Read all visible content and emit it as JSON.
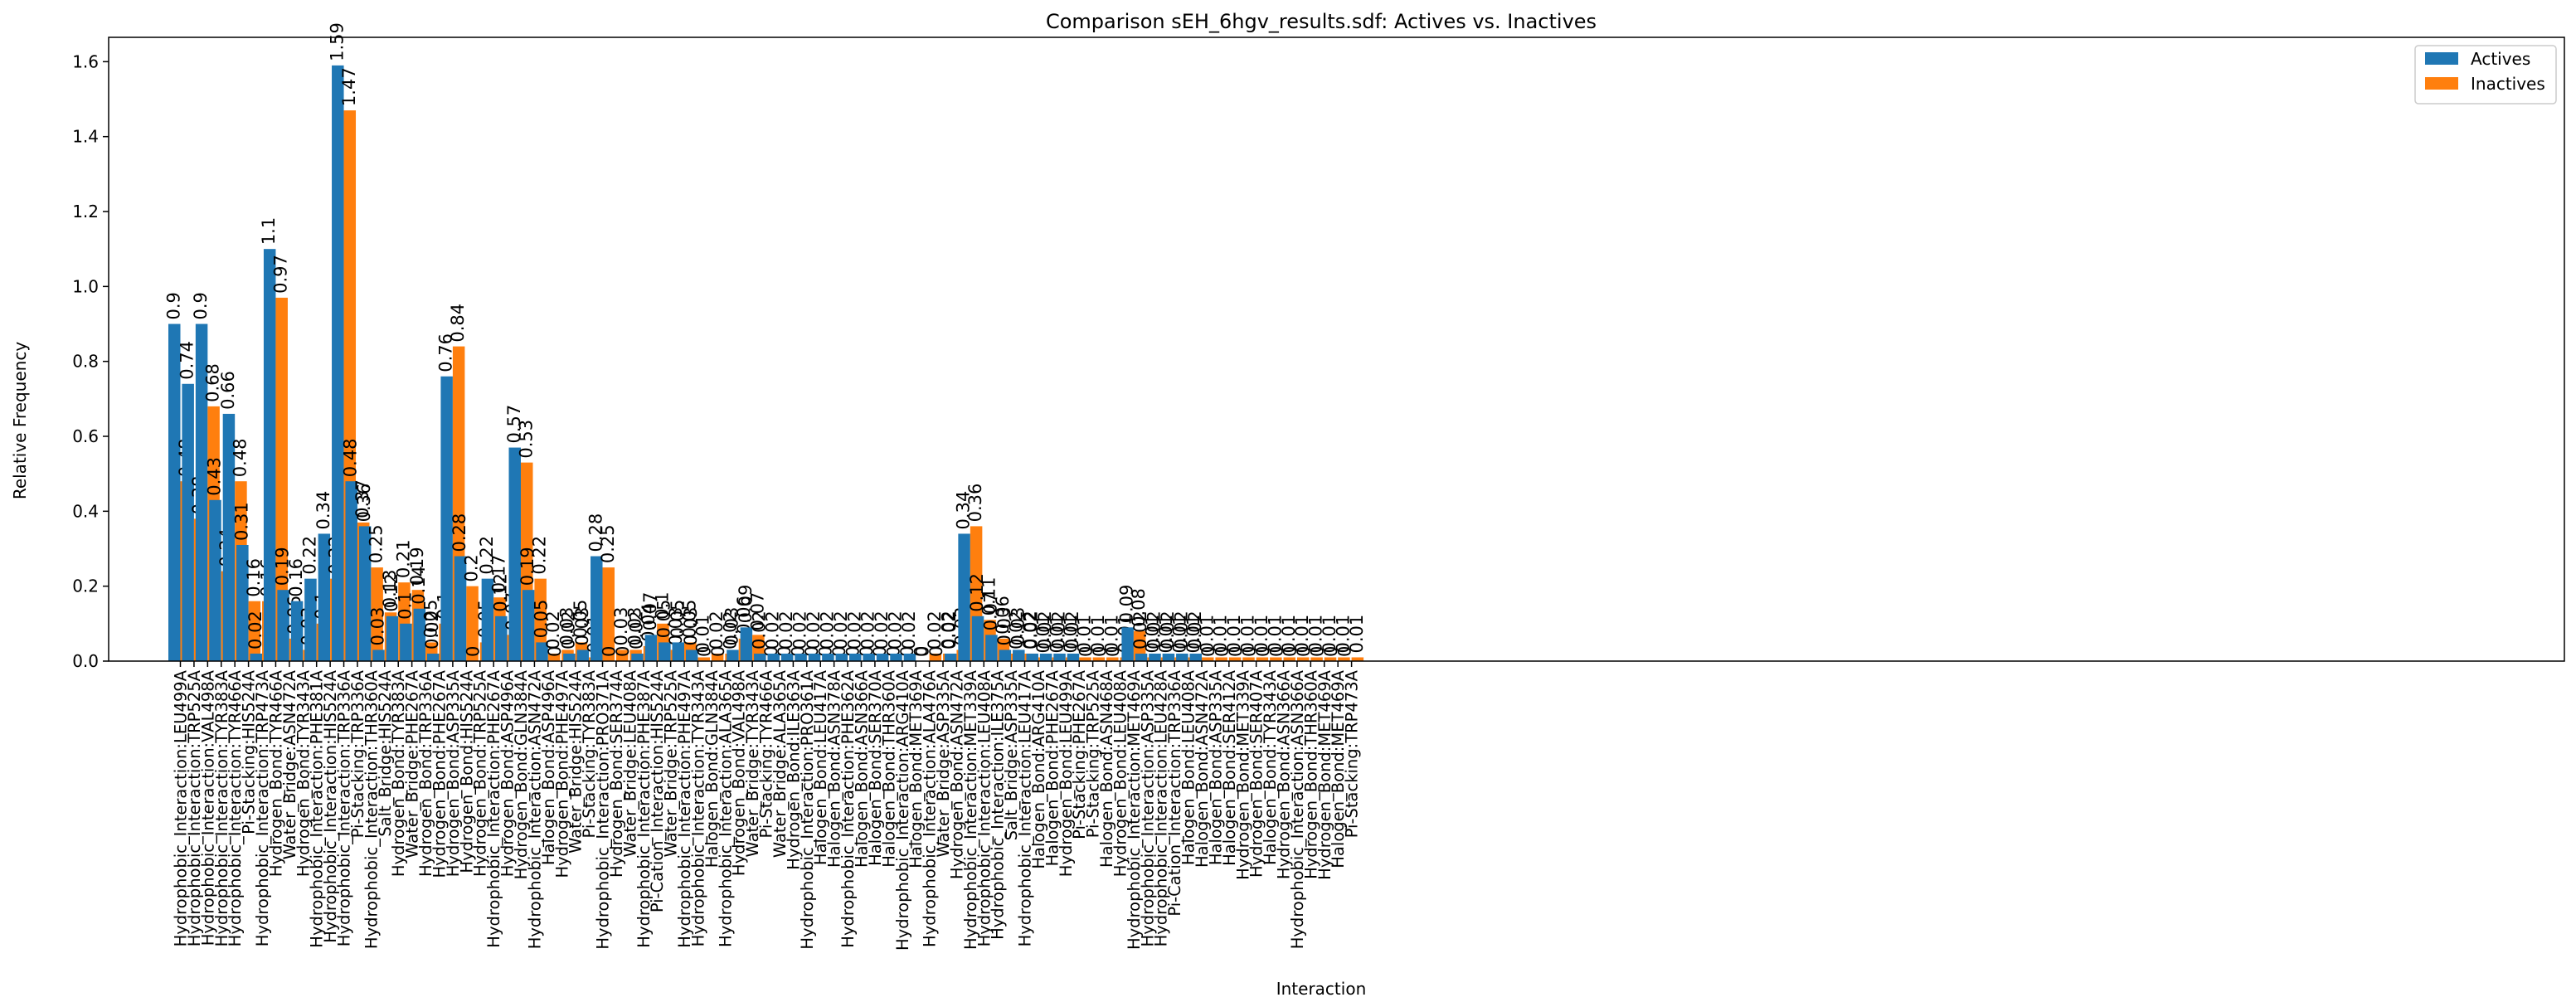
{
  "chart_data": {
    "type": "bar",
    "title": "Comparison sEH_6hgv_results.sdf: Actives vs. Inactives",
    "xlabel": "Interaction",
    "ylabel": "Relative Frequency",
    "ylim": [
      0,
      1.665
    ],
    "yticks": [
      "0.0",
      "0.2",
      "0.4",
      "0.6",
      "0.8",
      "1.0",
      "1.2",
      "1.4",
      "1.6"
    ],
    "grid": false,
    "legend_position": "top-right",
    "colors": {
      "Actives": "#1f77b4",
      "Inactives": "#ff7f0e"
    },
    "categories": [
      "Hydrophobic_Interaction:LEU499A",
      "Hydrophobic_Interaction:TRP525A",
      "Hydrophobic_Interaction:VAL498A",
      "Hydrophobic_Interaction:TYR383A",
      "Hydrophobic_Interaction:TYR466A",
      "Pi-Stacking:HIS524A",
      "Hydrophobic_Interaction:TRP473A",
      "Hydrogen_Bond:TYR466A",
      "Water_Bridge:ASN472A",
      "Hydrogen_Bond:TYR343A",
      "Hydrophobic_Interaction:PHE381A",
      "Hydrophobic_Interaction:HIS524A",
      "Hydrophobic_Interaction:TRP336A",
      "Pi-Stacking:TRP336A",
      "Hydrophobic_Interaction:THR360A",
      "Salt_Bridge:HIS524A",
      "Hydrogen_Bond:TYR383A",
      "Water_Bridge:PHE267A",
      "Hydrogen_Bond:TRP336A",
      "Hydrogen_Bond:PHE267A",
      "Hydrogen_Bond:ASP335A",
      "Hydrogen_Bond:HIS524A",
      "Hydrogen_Bond:TRP525A",
      "Hydrophobic_Interaction:PHE267A",
      "Hydrogen_Bond:ASP496A",
      "Hydrogen_Bond:GLN384A",
      "Hydrophobic_Interaction:ASN472A",
      "Halogen_Bond:ASP496A",
      "Hydrogen_Bond:PHE497A",
      "Water_Bridge:HIS524A",
      "Pi-Stacking:TYR383A",
      "Hydrophobic_Interaction:PRO371A",
      "Hydrogen_Bond:SER374A",
      "Water_Bridge:LEU408A",
      "Hydrophobic_Interaction:PHE387A",
      "Pi-Cation_Interaction:HIS524A",
      "Water_Bridge:TRP525A",
      "Hydrophobic_Interaction:PHE497A",
      "Hydrophobic_Interaction:TYR343A",
      "Halogen_Bond:GLN384A",
      "Hydrophobic_Interaction:ALA365A",
      "Hydrogen_Bond:VAL498A",
      "Water_Bridge:TYR343A",
      "Pi-Stacking:TYR466A",
      "Water_Bridge:ALA365A",
      "Hydrogen_Bond:ILE363A",
      "Hydrophobic_Interaction:PRO361A",
      "Halogen_Bond:LEU417A",
      "Halogen_Bond:ASN378A",
      "Hydrophobic_Interaction:PHE362A",
      "Halogen_Bond:ASN366A",
      "Halogen_Bond:SER370A",
      "Halogen_Bond:THR360A",
      "Hydrophobic_Interaction:ARG410A",
      "Halogen_Bond:MET369A",
      "Hydrophobic_Interaction:ALA476A",
      "Water_Bridge:ASP335A",
      "Hydrogen_Bond:ASN472A",
      "Hydrophobic_Interaction:MET339A",
      "Hydrophobic_Interaction:LEU408A",
      "Hydrophobic_Interaction:ILE375A",
      "Salt_Bridge:ASP335A",
      "Hydrophobic_Interaction:LEU417A",
      "Halogen_Bond:ARG410A",
      "Halogen_Bond:PHE267A",
      "Hydrogen_Bond:LEU499A",
      "Pi-Stacking:PHE267A",
      "Pi-Stacking:TRP525A",
      "Halogen_Bond:ASN468A",
      "Hydrogen_Bond:LEU408A",
      "Hydrophobic_Interaction:MET469A",
      "Hydrophobic_Interaction:ASP335A",
      "Hydrophobic_Interaction:LEU428A",
      "Pi-Cation_Interaction:TRP336A",
      "Halogen_Bond:LEU408A",
      "Halogen_Bond:ASN472A",
      "Halogen_Bond:ASP335A",
      "Halogen_Bond:SER412A",
      "Hydrogen_Bond:MET339A",
      "Hydrogen_Bond:SER407A",
      "Halogen_Bond:TYR343A",
      "Hydrogen_Bond:ASN366A",
      "Hydrophobic_Interaction:ASN366A",
      "Hydrogen_Bond:THR360A",
      "Hydrogen_Bond:MET469A",
      "Halogen_Bond:MET469A",
      "Pi-Stacking:TRP473A"
    ],
    "series": [
      {
        "name": "Actives",
        "values": [
          0.9,
          0.74,
          0.9,
          0.43,
          0.66,
          0.31,
          0.02,
          1.1,
          0.19,
          0.16,
          0.22,
          0.34,
          1.59,
          0.48,
          0.36,
          0.03,
          0.12,
          0.1,
          0.14,
          0.02,
          0.76,
          0.28,
          0,
          0.22,
          0.12,
          0.57,
          0.19,
          0.05,
          0,
          0.02,
          0.03,
          0.28,
          0,
          0,
          0.02,
          0.07,
          0.05,
          0.05,
          0.03,
          0,
          0,
          0.03,
          0.09,
          0.02,
          0.02,
          0.02,
          0.02,
          0.02,
          0.02,
          0.02,
          0.02,
          0.02,
          0.02,
          0.02,
          0.02,
          0,
          0,
          0.02,
          0.34,
          0.12,
          0.07,
          0.03,
          0.03,
          0.02,
          0.02,
          0.02,
          0.02,
          0,
          0,
          0,
          0.09,
          0.02,
          0.02,
          0.02,
          0.02,
          0.02,
          0,
          0,
          0,
          0,
          0,
          0,
          0,
          0,
          0,
          0,
          0
        ],
        "labels": [
          "0.9",
          "0.74",
          "0.9",
          "0.43",
          "0.66",
          "0.31",
          "0.02",
          "1.1",
          "0.19",
          "0.16",
          "0.22",
          "0.34",
          "1.59",
          "0.48",
          "0.36",
          "0.03",
          "0.12",
          "0.1",
          "0.14",
          "0.02",
          "0.76",
          "0.28",
          "0",
          "0.22",
          "0.12",
          "0.57",
          "0.19",
          "0.05",
          "0",
          "0.02",
          "0.03",
          "0.28",
          "0",
          "0",
          "0.02",
          "0.07",
          "0.05",
          "0.05",
          "0.03",
          "0",
          "0",
          "0.03",
          "0.09",
          "0.02",
          "0.02",
          "0.02",
          "0.02",
          "0.02",
          "0.02",
          "0.02",
          "0.02",
          "0.02",
          "0.02",
          "0.02",
          "0.02",
          "0",
          "0",
          "0.02",
          "0.34",
          "0.12",
          "0.07",
          "0.03",
          "0.03",
          "0.02",
          "0.02",
          "0.02",
          "0.02",
          "0",
          "0",
          "0",
          "0.09",
          "0.02",
          "0.02",
          "0.02",
          "0.02",
          "0.02",
          "0",
          "0",
          "0",
          "0",
          "0",
          "0",
          "0",
          "0",
          "0",
          "0",
          "0"
        ]
      },
      {
        "name": "Inactives",
        "values": [
          0.48,
          0.38,
          0.68,
          0.24,
          0.48,
          0.16,
          0.16,
          0.97,
          0.06,
          0.03,
          0.1,
          0.22,
          1.47,
          0.37,
          0.25,
          0.13,
          0.21,
          0.19,
          0.05,
          0.1,
          0.84,
          0.2,
          0.05,
          0.17,
          0.07,
          0.53,
          0.22,
          0.02,
          0.03,
          0.05,
          0.01,
          0.25,
          0.03,
          0.03,
          0.04,
          0.1,
          0.03,
          0.05,
          0.01,
          0.02,
          0.02,
          0.06,
          0.07,
          0,
          0,
          0,
          0,
          0,
          0,
          0,
          0,
          0,
          0,
          0,
          0,
          0.02,
          0.02,
          0.03,
          0.36,
          0.11,
          0.06,
          0.02,
          0.02,
          0.01,
          0.01,
          0.01,
          0.01,
          0.01,
          0.01,
          0.01,
          0.08,
          0.01,
          0.01,
          0.01,
          0.01,
          0.01,
          0.01,
          0.01,
          0.01,
          0.01,
          0.01,
          0.01,
          0.01,
          0.01,
          0.01,
          0.01,
          0.01
        ],
        "labels": [
          "0.48",
          "0.38",
          "0.68",
          "0.24",
          "0.48",
          "0.16",
          "0.16",
          "0.97",
          "0.06",
          "0.03",
          "0.1",
          "0.22",
          "1.47",
          "0.37",
          "0.25",
          "0.13",
          "0.21",
          "0.19",
          "0.05",
          "0.1",
          "0.84",
          "0.2",
          "0.05",
          "0.17",
          "0.07",
          "0.53",
          "0.22",
          "0.02",
          "0.03",
          "0.05",
          "0.01",
          "0.25",
          "0.03",
          "0.03",
          "0.04",
          "0.1",
          "0.03",
          "0.05",
          "0.01",
          "0.02",
          "0.02",
          "0.06",
          "0.07",
          "0",
          "0",
          "0",
          "0",
          "0",
          "0",
          "0",
          "0",
          "0",
          "0",
          "0",
          "0",
          "0.02",
          "0.02",
          "0.03",
          "0.36",
          "0.11",
          "0.06",
          "0.02",
          "0.02",
          "0.01",
          "0.01",
          "0.01",
          "0.01",
          "0.01",
          "0.01",
          "0.01",
          "0.08",
          "0.01",
          "0.01",
          "0.01",
          "0.01",
          "0.01",
          "0.01",
          "0.01",
          "0.01",
          "0.01",
          "0.01",
          "0.01",
          "0.01",
          "0.01",
          "0.01",
          "0.01",
          "0.01"
        ]
      }
    ]
  }
}
